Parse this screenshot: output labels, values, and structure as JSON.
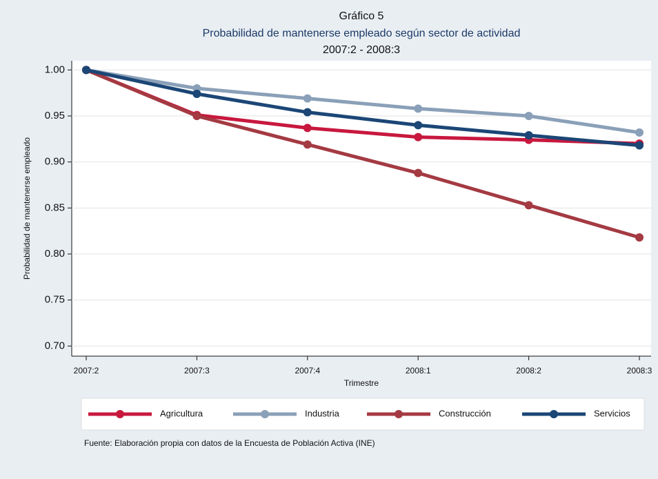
{
  "chart_data": {
    "type": "line",
    "title": "Gráfico 5",
    "subtitle": "Probabilidad de mantenerse empleado según sector de actividad",
    "period": "2007:2 - 2008:3",
    "y_label": "Probabilidad de mantenerse empleado",
    "x_label": "Trimestre",
    "note": "Fuente: Elaboración propia con datos de la Encuesta de Población Activa (INE)",
    "categories": [
      "2007:2",
      "2007:3",
      "2007:4",
      "2008:1",
      "2008:2",
      "2008:3"
    ],
    "series": [
      {
        "name": "Agricultura",
        "color": "#c8183e",
        "values": [
          1.0,
          0.951,
          0.937,
          0.927,
          0.924,
          0.92
        ]
      },
      {
        "name": "Industria",
        "color": "#8aa0b8",
        "values": [
          1.0,
          0.98,
          0.969,
          0.958,
          0.95,
          0.932
        ]
      },
      {
        "name": "Construcción",
        "color": "#a43a42",
        "values": [
          1.0,
          0.95,
          0.919,
          0.888,
          0.853,
          0.818
        ]
      },
      {
        "name": "Servicios",
        "color": "#1b4676",
        "values": [
          1.0,
          0.974,
          0.954,
          0.94,
          0.929,
          0.918
        ]
      }
    ],
    "ylim": [
      0.689,
      1.01
    ],
    "yticks": [
      {
        "value": 0.7,
        "label": "0.70"
      },
      {
        "value": 0.75,
        "label": "0.75"
      },
      {
        "value": 0.8,
        "label": "0.80"
      },
      {
        "value": 0.85,
        "label": "0.85"
      },
      {
        "value": 0.9,
        "label": "0.90"
      },
      {
        "value": 0.95,
        "label": "0.95"
      },
      {
        "value": 1.0,
        "label": "1.00"
      }
    ],
    "grid": true,
    "legend": "bottom"
  }
}
